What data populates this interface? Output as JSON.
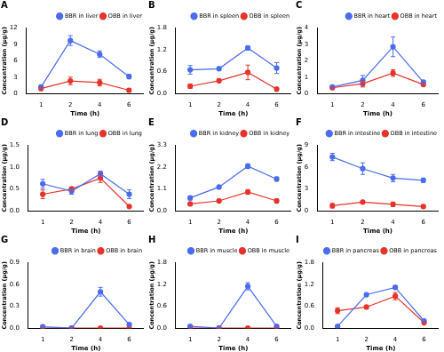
{
  "chart_data": [
    {
      "type": "line",
      "title": "A",
      "x_label": "Time (h)",
      "y_label": "Concentration (μg/g)",
      "categories": [
        "1",
        "2",
        "4",
        "6"
      ],
      "ylim": [
        0,
        12
      ],
      "yticks": [
        0,
        3,
        6,
        9,
        12
      ],
      "grid": false,
      "legend": "upper right",
      "series": [
        {
          "name": "BBR in liver",
          "color": "#4a6cf0",
          "marker": "circle",
          "values": [
            1.2,
            9.7,
            7.2,
            3.1
          ],
          "errors": [
            0.3,
            0.9,
            0.6,
            0.4
          ]
        },
        {
          "name": "OBB in liver",
          "color": "#e8322a",
          "marker": "circle",
          "values": [
            0.9,
            2.3,
            2.0,
            0.6
          ],
          "errors": [
            0.2,
            0.7,
            0.6,
            0.3
          ]
        }
      ]
    },
    {
      "type": "line",
      "title": "B",
      "x_label": "Time (h)",
      "y_label": "Concentration (μg/g)",
      "categories": [
        "1",
        "2",
        "4",
        "6"
      ],
      "ylim": [
        0,
        1.8
      ],
      "yticks": [
        {
          "value": 0,
          "label": "0.0"
        },
        0.6,
        1.2,
        1.8
      ],
      "grid": false,
      "legend": "upper right",
      "series": [
        {
          "name": "BBR in spleen",
          "color": "#4a6cf0",
          "marker": "circle",
          "values": [
            0.65,
            0.68,
            1.25,
            0.7
          ],
          "errors": [
            0.12,
            0.05,
            0.06,
            0.15
          ]
        },
        {
          "name": "OBB in spleen",
          "color": "#e8322a",
          "marker": "circle",
          "values": [
            0.2,
            0.35,
            0.58,
            0.12
          ],
          "errors": [
            0.06,
            0.05,
            0.2,
            0.05
          ]
        }
      ]
    },
    {
      "type": "line",
      "title": "C",
      "x_label": "Time (h)",
      "y_label": "Concentration (μg/g)",
      "categories": [
        "1",
        "2",
        "4",
        "6"
      ],
      "ylim": [
        0,
        4
      ],
      "yticks": [
        0,
        1,
        2,
        3,
        4
      ],
      "grid": false,
      "legend": "upper right",
      "series": [
        {
          "name": "BBR in heart",
          "color": "#4a6cf0",
          "marker": "circle",
          "values": [
            0.4,
            0.8,
            2.85,
            0.7
          ],
          "errors": [
            0.1,
            0.3,
            0.6,
            0.1
          ]
        },
        {
          "name": "OBB in heart",
          "color": "#e8322a",
          "marker": "circle",
          "values": [
            0.35,
            0.6,
            1.25,
            0.55
          ],
          "errors": [
            0.05,
            0.2,
            0.2,
            0.1
          ]
        }
      ]
    },
    {
      "type": "line",
      "title": "D",
      "x_label": "Time (h)",
      "y_label": "Concentration (μg/g)",
      "categories": [
        "1",
        "2",
        "4",
        "6"
      ],
      "ylim": [
        0,
        1.5
      ],
      "yticks": [
        {
          "value": 0,
          "label": "0.0"
        },
        0.5,
        {
          "value": 1,
          "label": "1.0"
        },
        1.5
      ],
      "grid": false,
      "legend": "upper right",
      "series": [
        {
          "name": "BBR in lung",
          "color": "#4a6cf0",
          "marker": "circle",
          "values": [
            0.62,
            0.45,
            0.85,
            0.38
          ],
          "errors": [
            0.1,
            0.07,
            0.06,
            0.1
          ]
        },
        {
          "name": "OBB in lung",
          "color": "#e8322a",
          "marker": "circle",
          "values": [
            0.38,
            0.5,
            0.75,
            0.1
          ],
          "errors": [
            0.1,
            0.05,
            0.1,
            0.02
          ]
        }
      ]
    },
    {
      "type": "line",
      "title": "E",
      "x_label": "Time (h)",
      "y_label": "Concentration (μg/g)",
      "categories": [
        "1",
        "2",
        "4",
        "6"
      ],
      "ylim": [
        0,
        3.3
      ],
      "yticks": [
        {
          "value": 0,
          "label": "0.0"
        },
        1.1,
        2.2,
        3.3
      ],
      "grid": false,
      "legend": "upper right",
      "series": [
        {
          "name": "BBR in kidney",
          "color": "#4a6cf0",
          "marker": "circle",
          "values": [
            0.65,
            1.2,
            2.25,
            1.6
          ],
          "errors": [
            0.1,
            0.08,
            0.12,
            0.1
          ]
        },
        {
          "name": "OBB in kidney",
          "color": "#e8322a",
          "marker": "circle",
          "values": [
            0.35,
            0.5,
            0.95,
            0.5
          ],
          "errors": [
            0.05,
            0.08,
            0.12,
            0.1
          ]
        }
      ]
    },
    {
      "type": "line",
      "title": "F",
      "x_label": "Time (h)",
      "y_label": "Concentration (μg/g)",
      "categories": [
        "1",
        "2",
        "4",
        "6"
      ],
      "ylim": [
        0,
        9
      ],
      "yticks": [
        0,
        3,
        6,
        9
      ],
      "grid": false,
      "legend": "upper right",
      "series": [
        {
          "name": "BBR in intestine",
          "color": "#4a6cf0",
          "marker": "circle",
          "values": [
            7.4,
            5.8,
            4.5,
            4.2
          ],
          "errors": [
            0.5,
            0.8,
            0.5,
            0.3
          ]
        },
        {
          "name": "OBB in intestine",
          "color": "#e8322a",
          "marker": "circle",
          "values": [
            0.7,
            1.2,
            0.9,
            0.6
          ],
          "errors": [
            0.3,
            0.2,
            0.3,
            0.2
          ]
        }
      ]
    },
    {
      "type": "line",
      "title": "G",
      "x_label": "Time (h)",
      "y_label": "Concentration (μg/g)",
      "categories": [
        "1",
        "2",
        "4",
        "6"
      ],
      "ylim": [
        0,
        0.9
      ],
      "yticks": [
        {
          "value": 0,
          "label": "0.0"
        },
        0.3,
        0.6,
        0.9
      ],
      "grid": false,
      "legend": "upper right",
      "series": [
        {
          "name": "BBR in brain",
          "color": "#4a6cf0",
          "marker": "circle",
          "values": [
            0.02,
            0,
            0.5,
            0.05
          ],
          "errors": [
            0.02,
            0,
            0.06,
            0.02
          ]
        },
        {
          "name": "OBB in brain",
          "color": "#e8322a",
          "marker": "circle",
          "values": [
            0,
            0,
            0,
            0
          ],
          "errors": [
            0,
            0,
            0,
            0
          ]
        }
      ]
    },
    {
      "type": "line",
      "title": "H",
      "x_label": "Time (h)",
      "y_label": "Concentration (μg/g)",
      "categories": [
        "1",
        "2",
        "4",
        "6"
      ],
      "ylim": [
        0,
        1.8
      ],
      "yticks": [
        {
          "value": 0,
          "label": "0.0"
        },
        0.6,
        1.2,
        1.8
      ],
      "grid": false,
      "legend": "upper right",
      "series": [
        {
          "name": "BBR in muscle",
          "color": "#4a6cf0",
          "marker": "circle",
          "values": [
            0.05,
            0,
            1.15,
            0.05
          ],
          "errors": [
            0.02,
            0,
            0.1,
            0.02
          ]
        },
        {
          "name": "OBB in muscle",
          "color": "#e8322a",
          "marker": "circle",
          "values": [
            0,
            0,
            0,
            0
          ],
          "errors": [
            0,
            0,
            0,
            0
          ]
        }
      ]
    },
    {
      "type": "line",
      "title": "I",
      "x_label": "Time (h)",
      "y_label": "Concentration (μg/g)",
      "categories": [
        "1",
        "2",
        "4",
        "6"
      ],
      "ylim": [
        0,
        1.8
      ],
      "yticks": [
        {
          "value": 0,
          "label": "0.0"
        },
        0.6,
        1.2,
        1.8
      ],
      "grid": false,
      "legend": "upper right",
      "series": [
        {
          "name": "BBR in pancreas",
          "color": "#4a6cf0",
          "marker": "circle",
          "values": [
            0.05,
            0.92,
            1.12,
            0.2
          ],
          "errors": [
            0.02,
            0.05,
            0.05,
            0.03
          ]
        },
        {
          "name": "OBB in pancreas",
          "color": "#e8322a",
          "marker": "circle",
          "values": [
            0.48,
            0.58,
            0.88,
            0.15
          ],
          "errors": [
            0.08,
            0.03,
            0.1,
            0.03
          ]
        }
      ]
    }
  ]
}
